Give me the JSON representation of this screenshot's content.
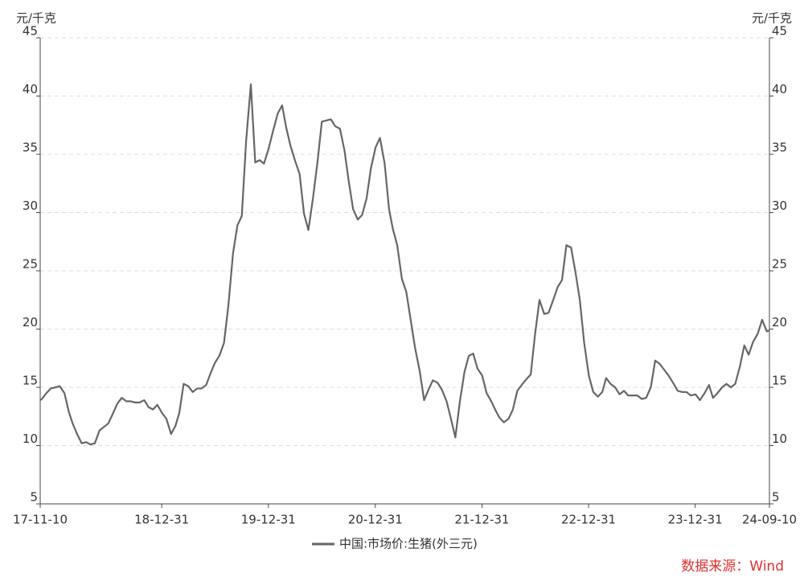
{
  "chart_data": {
    "type": "line",
    "y_label": "元/千克",
    "source": "数据来源：Wind",
    "x": [
      "2017-11-10",
      "2017-11-16",
      "2017-12-01",
      "2017-12-16",
      "2018-01-01",
      "2018-01-16",
      "2018-02-01",
      "2018-02-16",
      "2018-03-01",
      "2018-03-16",
      "2018-04-01",
      "2018-04-16",
      "2018-05-01",
      "2018-05-16",
      "2018-06-01",
      "2018-06-16",
      "2018-07-01",
      "2018-07-16",
      "2018-08-01",
      "2018-08-16",
      "2018-09-01",
      "2018-09-16",
      "2018-10-01",
      "2018-10-16",
      "2018-11-01",
      "2018-11-16",
      "2018-12-01",
      "2018-12-16",
      "2019-01-01",
      "2019-01-16",
      "2019-02-01",
      "2019-02-16",
      "2019-03-01",
      "2019-03-16",
      "2019-04-01",
      "2019-04-16",
      "2019-05-01",
      "2019-05-16",
      "2019-06-01",
      "2019-06-16",
      "2019-07-01",
      "2019-07-16",
      "2019-08-01",
      "2019-08-16",
      "2019-09-01",
      "2019-09-16",
      "2019-10-01",
      "2019-10-16",
      "2019-11-01",
      "2019-11-16",
      "2019-12-01",
      "2019-12-16",
      "2020-01-01",
      "2020-01-16",
      "2020-02-01",
      "2020-02-16",
      "2020-03-01",
      "2020-03-16",
      "2020-04-01",
      "2020-04-16",
      "2020-05-01",
      "2020-05-16",
      "2020-06-01",
      "2020-06-16",
      "2020-07-01",
      "2020-07-16",
      "2020-08-01",
      "2020-08-16",
      "2020-09-01",
      "2020-09-16",
      "2020-10-01",
      "2020-10-16",
      "2020-11-01",
      "2020-11-16",
      "2020-12-01",
      "2020-12-16",
      "2021-01-01",
      "2021-01-16",
      "2021-02-01",
      "2021-02-16",
      "2021-03-01",
      "2021-03-16",
      "2021-04-01",
      "2021-04-16",
      "2021-05-01",
      "2021-05-16",
      "2021-06-01",
      "2021-06-16",
      "2021-07-01",
      "2021-07-16",
      "2021-08-01",
      "2021-08-16",
      "2021-09-01",
      "2021-09-16",
      "2021-10-01",
      "2021-10-16",
      "2021-11-01",
      "2021-11-16",
      "2021-12-01",
      "2021-12-16",
      "2022-01-01",
      "2022-01-16",
      "2022-02-01",
      "2022-02-16",
      "2022-03-01",
      "2022-03-16",
      "2022-04-01",
      "2022-04-16",
      "2022-05-01",
      "2022-05-16",
      "2022-06-01",
      "2022-06-16",
      "2022-07-01",
      "2022-07-16",
      "2022-08-01",
      "2022-08-16",
      "2022-09-01",
      "2022-09-16",
      "2022-10-01",
      "2022-10-16",
      "2022-11-01",
      "2022-11-16",
      "2022-12-01",
      "2022-12-16",
      "2023-01-01",
      "2023-01-16",
      "2023-02-01",
      "2023-02-16",
      "2023-03-01",
      "2023-03-16",
      "2023-04-01",
      "2023-04-16",
      "2023-05-01",
      "2023-05-16",
      "2023-06-01",
      "2023-06-16",
      "2023-07-01",
      "2023-07-16",
      "2023-08-01",
      "2023-08-16",
      "2023-09-01",
      "2023-09-16",
      "2023-10-01",
      "2023-10-16",
      "2023-11-01",
      "2023-11-16",
      "2023-12-01",
      "2023-12-16",
      "2024-01-01",
      "2024-01-16",
      "2024-02-01",
      "2024-02-16",
      "2024-03-01",
      "2024-03-16",
      "2024-04-01",
      "2024-04-16",
      "2024-05-01",
      "2024-05-16",
      "2024-06-01",
      "2024-06-16",
      "2024-07-01",
      "2024-07-16",
      "2024-08-01",
      "2024-08-16",
      "2024-09-01",
      "2024-09-10"
    ],
    "series": [
      {
        "name": "中国:市场价:生猪(外三元)",
        "color": "#666666",
        "values": [
          13.9,
          14.0,
          14.5,
          14.9,
          15.0,
          15.1,
          14.5,
          12.9,
          11.9,
          11.0,
          10.2,
          10.3,
          10.1,
          10.2,
          11.3,
          11.6,
          11.9,
          12.7,
          13.6,
          14.1,
          13.8,
          13.8,
          13.7,
          13.7,
          13.9,
          13.3,
          13.1,
          13.5,
          12.8,
          12.3,
          11.0,
          11.7,
          12.8,
          15.3,
          15.1,
          14.6,
          14.9,
          14.9,
          15.2,
          16.2,
          17.1,
          17.7,
          18.8,
          22.0,
          26.5,
          28.9,
          29.7,
          36.2,
          41.0,
          34.3,
          34.5,
          34.2,
          35.5,
          37.0,
          38.5,
          39.2,
          37.3,
          35.7,
          34.4,
          33.3,
          29.9,
          28.5,
          31.3,
          34.3,
          37.8,
          37.9,
          38.0,
          37.4,
          37.2,
          35.4,
          32.7,
          30.3,
          29.4,
          29.8,
          31.2,
          33.8,
          35.6,
          36.4,
          34.2,
          30.3,
          28.6,
          27.2,
          24.3,
          23.2,
          20.8,
          18.4,
          16.4,
          13.9,
          14.8,
          15.6,
          15.4,
          14.8,
          13.8,
          12.3,
          10.7,
          13.7,
          16.3,
          17.7,
          17.9,
          16.6,
          16.0,
          14.5,
          13.8,
          13.0,
          12.4,
          12.0,
          12.3,
          13.1,
          14.7,
          15.2,
          15.7,
          16.1,
          19.6,
          22.5,
          21.3,
          21.4,
          22.5,
          23.6,
          24.2,
          27.2,
          27.0,
          24.9,
          22.5,
          18.8,
          16.0,
          14.6,
          14.2,
          14.6,
          15.8,
          15.3,
          15.0,
          14.4,
          14.7,
          14.3,
          14.3,
          14.3,
          14.0,
          14.1,
          15.0,
          17.3,
          17.0,
          16.5,
          16.0,
          15.4,
          14.7,
          14.6,
          14.6,
          14.3,
          14.4,
          13.9,
          14.5,
          15.2,
          14.1,
          14.5,
          15.0,
          15.3,
          15.0,
          15.3,
          16.8,
          18.6,
          17.8,
          18.9,
          19.6,
          20.8,
          19.8,
          19.9
        ]
      }
    ],
    "xlim": [
      "2017-11-10",
      "2024-09-10"
    ],
    "xticks": [
      {
        "value": "2017-11-10",
        "label": "17-11-10"
      },
      {
        "value": "2018-12-31",
        "label": "18-12-31"
      },
      {
        "value": "2019-12-31",
        "label": "19-12-31"
      },
      {
        "value": "2020-12-31",
        "label": "20-12-31"
      },
      {
        "value": "2021-12-31",
        "label": "21-12-31"
      },
      {
        "value": "2022-12-31",
        "label": "22-12-31"
      },
      {
        "value": "2023-12-31",
        "label": "23-12-31"
      },
      {
        "value": "2024-09-10",
        "label": "24-09-10"
      }
    ],
    "ylim": [
      5,
      45
    ],
    "yticks": [
      5,
      10,
      15,
      20,
      25,
      30,
      35,
      40,
      45
    ],
    "grid": true
  }
}
